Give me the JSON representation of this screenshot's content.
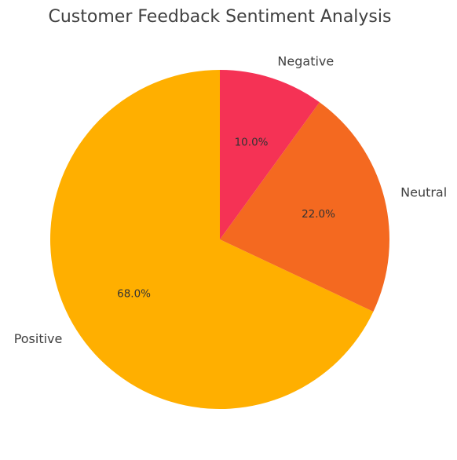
{
  "chart_data": {
    "type": "pie",
    "title": "Customer Feedback Sentiment Analysis",
    "categories": [
      "Positive",
      "Neutral",
      "Negative"
    ],
    "values": [
      68.0,
      22.0,
      10.0
    ],
    "value_labels": [
      "68.0%",
      "22.0%",
      "10.0%"
    ],
    "colors": [
      "#FFAF00",
      "#F46920",
      "#F53255"
    ],
    "start_angle_deg": 90,
    "direction": "counterclockwise",
    "legend": "none"
  }
}
